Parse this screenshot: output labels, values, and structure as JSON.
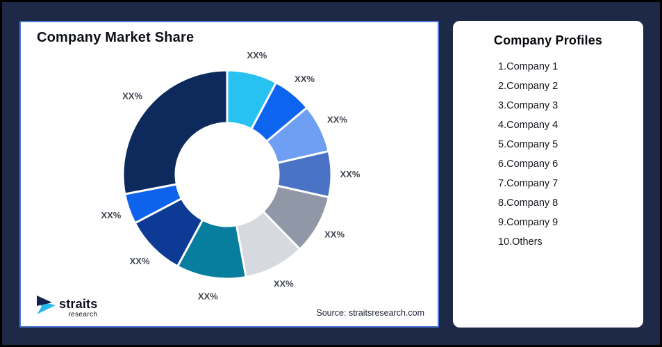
{
  "page": {
    "background": "#1d2946",
    "frame_color": "#000000"
  },
  "chart_card": {
    "title": "Company Market Share",
    "border_color": "#4d79d3",
    "source_text": "Source: straitsresearch.com",
    "logo": {
      "brand": "straits",
      "brand_sub": "research",
      "mark_navy": "#13234e",
      "mark_cyan": "#29b9ea"
    }
  },
  "profiles_card": {
    "title": "Company Profiles",
    "items": [
      "1.Company 1",
      "2.Company 2",
      "3.Company 3",
      "4.Company 4",
      "5.Company 5",
      "6.Company 6",
      "7.Company 7",
      "8.Company 8",
      "9.Company 9",
      "10.Others"
    ]
  },
  "chart_data": {
    "type": "pie",
    "subtype": "donut",
    "title": "Company Market Share",
    "slice_labels": [
      "XX%",
      "XX%",
      "XX%",
      "XX%",
      "XX%",
      "XX%",
      "XX%",
      "XX%",
      "XX%",
      "XX%"
    ],
    "values_pct": [
      7.8,
      6.1,
      7.5,
      7.1,
      9.2,
      9.4,
      10.8,
      9.4,
      4.7,
      28.0
    ],
    "colors": [
      "#27C1F2",
      "#0D65EF",
      "#6E9FF3",
      "#4A73C5",
      "#9097A6",
      "#D6D9DF",
      "#077E9E",
      "#0C3A94",
      "#0E62EC",
      "#0E2A5C"
    ],
    "start_angle_deg": 0,
    "direction": "clockwise",
    "inner_radius_ratio": 0.49,
    "gap_color": "#ffffff",
    "label_color": "#3f4650",
    "legend_position": "none"
  }
}
